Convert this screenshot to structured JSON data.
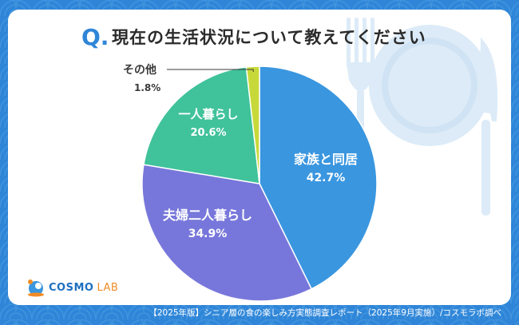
{
  "header": {
    "q_mark": "Q.",
    "title": "現在の生活状況について教えてください"
  },
  "chart_data": {
    "type": "pie",
    "title": "現在の生活状況について教えてください",
    "slices": [
      {
        "label": "家族と同居",
        "value": 42.7,
        "display": "42.7%",
        "color": "#3a96df"
      },
      {
        "label": "夫婦二人暮らし",
        "value": 34.9,
        "display": "34.9%",
        "color": "#7777db"
      },
      {
        "label": "一人暮らし",
        "value": 20.6,
        "display": "20.6%",
        "color": "#40c29a"
      },
      {
        "label": "その他",
        "value": 1.8,
        "display": "1.8%",
        "color": "#c7d93a"
      }
    ]
  },
  "colors": {
    "background": "#2f86d8",
    "accent": "#2f86d8",
    "plate": "#dcebf7"
  },
  "icons": [
    "fork-icon",
    "plate-icon",
    "knife-icon",
    "cosmo-lab-logo-icon"
  ],
  "logo": {
    "brand": "COSMO",
    "suffix": "LAB"
  },
  "footer": {
    "source": "【2025年版】シニア層の食の楽しみ方実態調査レポート（2025年9月実施）/コスモラボ調べ"
  }
}
